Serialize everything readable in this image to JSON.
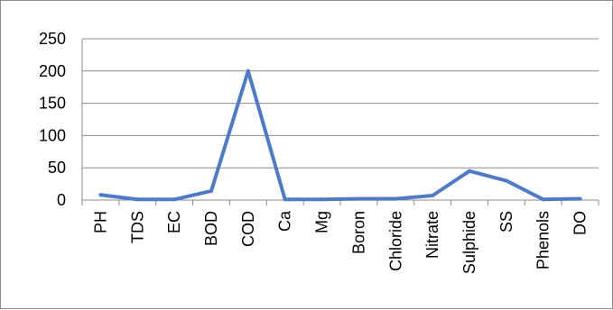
{
  "chart_data": {
    "type": "line",
    "title": "",
    "xlabel": "",
    "ylabel": "",
    "ylim": [
      0,
      250
    ],
    "yticks": [
      0,
      50,
      100,
      150,
      200,
      250
    ],
    "grid": true,
    "legend": "none",
    "categories": [
      "PH",
      "TDS",
      "EC",
      "BOD",
      "COD",
      "Ca",
      "Mg",
      "Boron",
      "Chloride",
      "Nitrate",
      "Sulphide",
      "SS",
      "Phenols",
      "DO"
    ],
    "series": [
      {
        "color": "#4e7ac7",
        "values": [
          8,
          1,
          1,
          14,
          200,
          1,
          1,
          2,
          2,
          7,
          45,
          30,
          1,
          2
        ]
      }
    ]
  }
}
